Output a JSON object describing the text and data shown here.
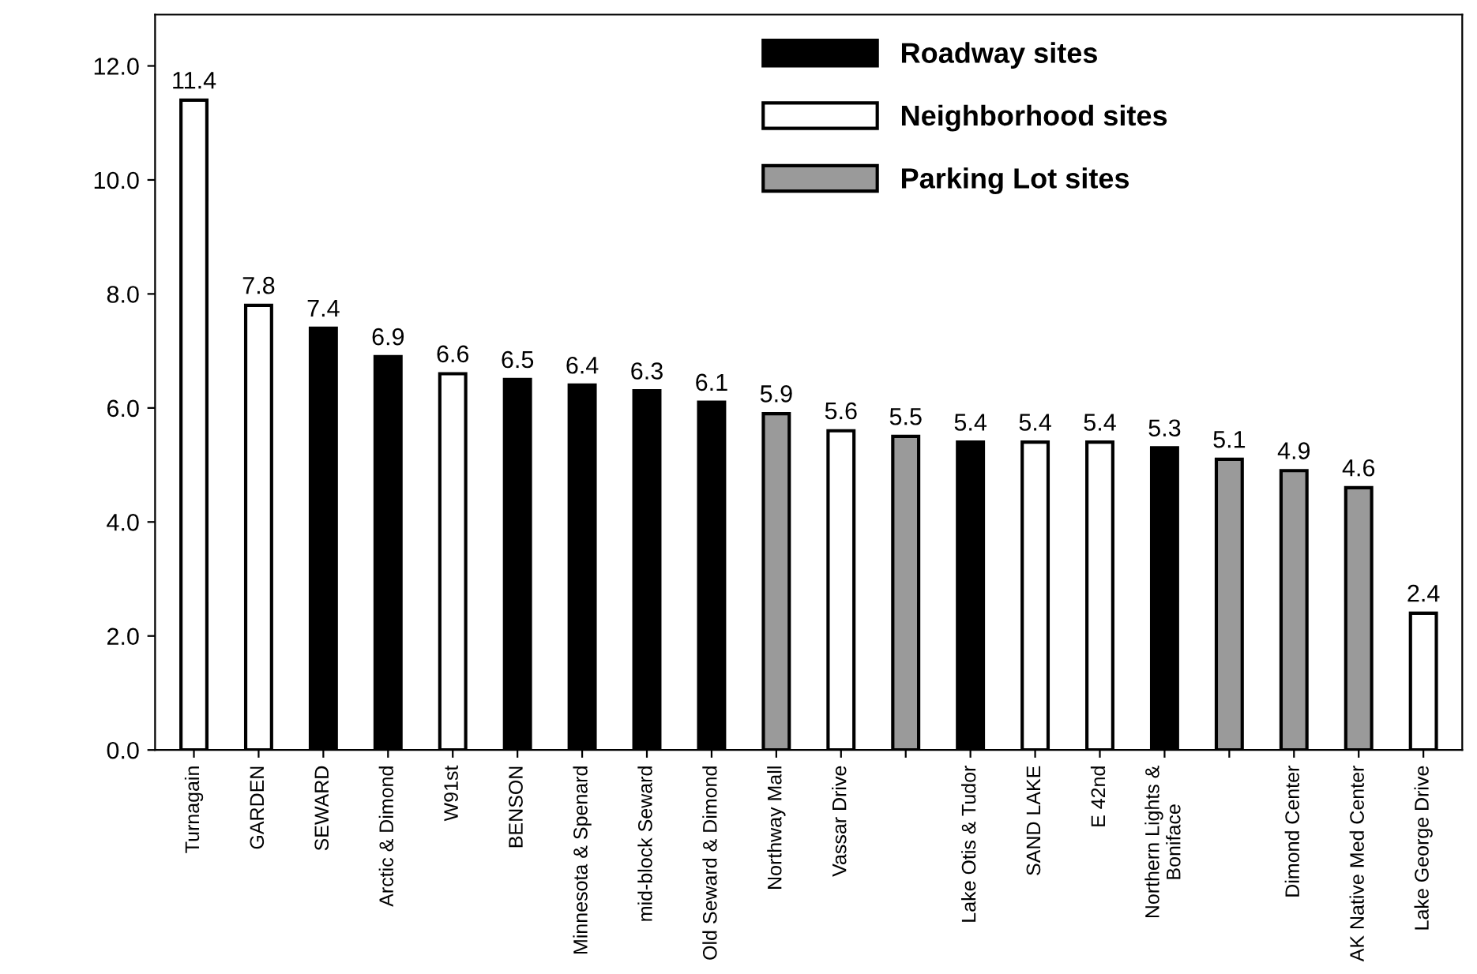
{
  "chart_data": {
    "type": "bar",
    "categories": [
      "Turnagain",
      "GARDEN",
      "SEWARD",
      "Arctic & Dimond",
      "W91st",
      "BENSON",
      "Minnesota & Spenard",
      "mid-block Seward",
      "Old Seward & Dimond",
      "Northway Mall",
      "Vassar Drive",
      null,
      "Lake Otis & Tudor",
      "SAND LAKE",
      "E 42nd",
      "Northern Lights &\nBoniface",
      null,
      "Dimond Center",
      "AK Native Med Center",
      "Lake George Drive"
    ],
    "series": [
      {
        "name": "Roadway sites",
        "color": "#000000",
        "values": [
          null,
          null,
          7.4,
          6.9,
          null,
          6.5,
          6.4,
          6.3,
          6.1,
          null,
          null,
          null,
          5.4,
          null,
          null,
          5.3,
          null,
          null,
          null,
          null
        ]
      },
      {
        "name": "Neighborhood sites",
        "color": "#ffffff",
        "values": [
          11.4,
          7.8,
          null,
          null,
          6.6,
          null,
          null,
          null,
          null,
          null,
          5.6,
          null,
          null,
          5.4,
          5.4,
          null,
          null,
          null,
          null,
          2.4
        ]
      },
      {
        "name": "Parking Lot sites",
        "color": "#9a9a9a",
        "values": [
          null,
          null,
          null,
          null,
          null,
          null,
          null,
          null,
          null,
          5.9,
          null,
          5.5,
          null,
          null,
          null,
          null,
          5.1,
          4.9,
          4.6,
          null
        ]
      }
    ],
    "ylim": [
      0,
      12.9
    ],
    "yticks": [
      {
        "value": 0,
        "label": "0.0"
      },
      {
        "value": 2,
        "label": "2.0"
      },
      {
        "value": 4,
        "label": "4.0"
      },
      {
        "value": 6,
        "label": "6.0"
      },
      {
        "value": 8,
        "label": "8.0"
      },
      {
        "value": 10,
        "label": "10.0"
      },
      {
        "value": 12,
        "label": "12.0"
      }
    ],
    "data_labels": true,
    "grid": false,
    "legend": "top"
  }
}
